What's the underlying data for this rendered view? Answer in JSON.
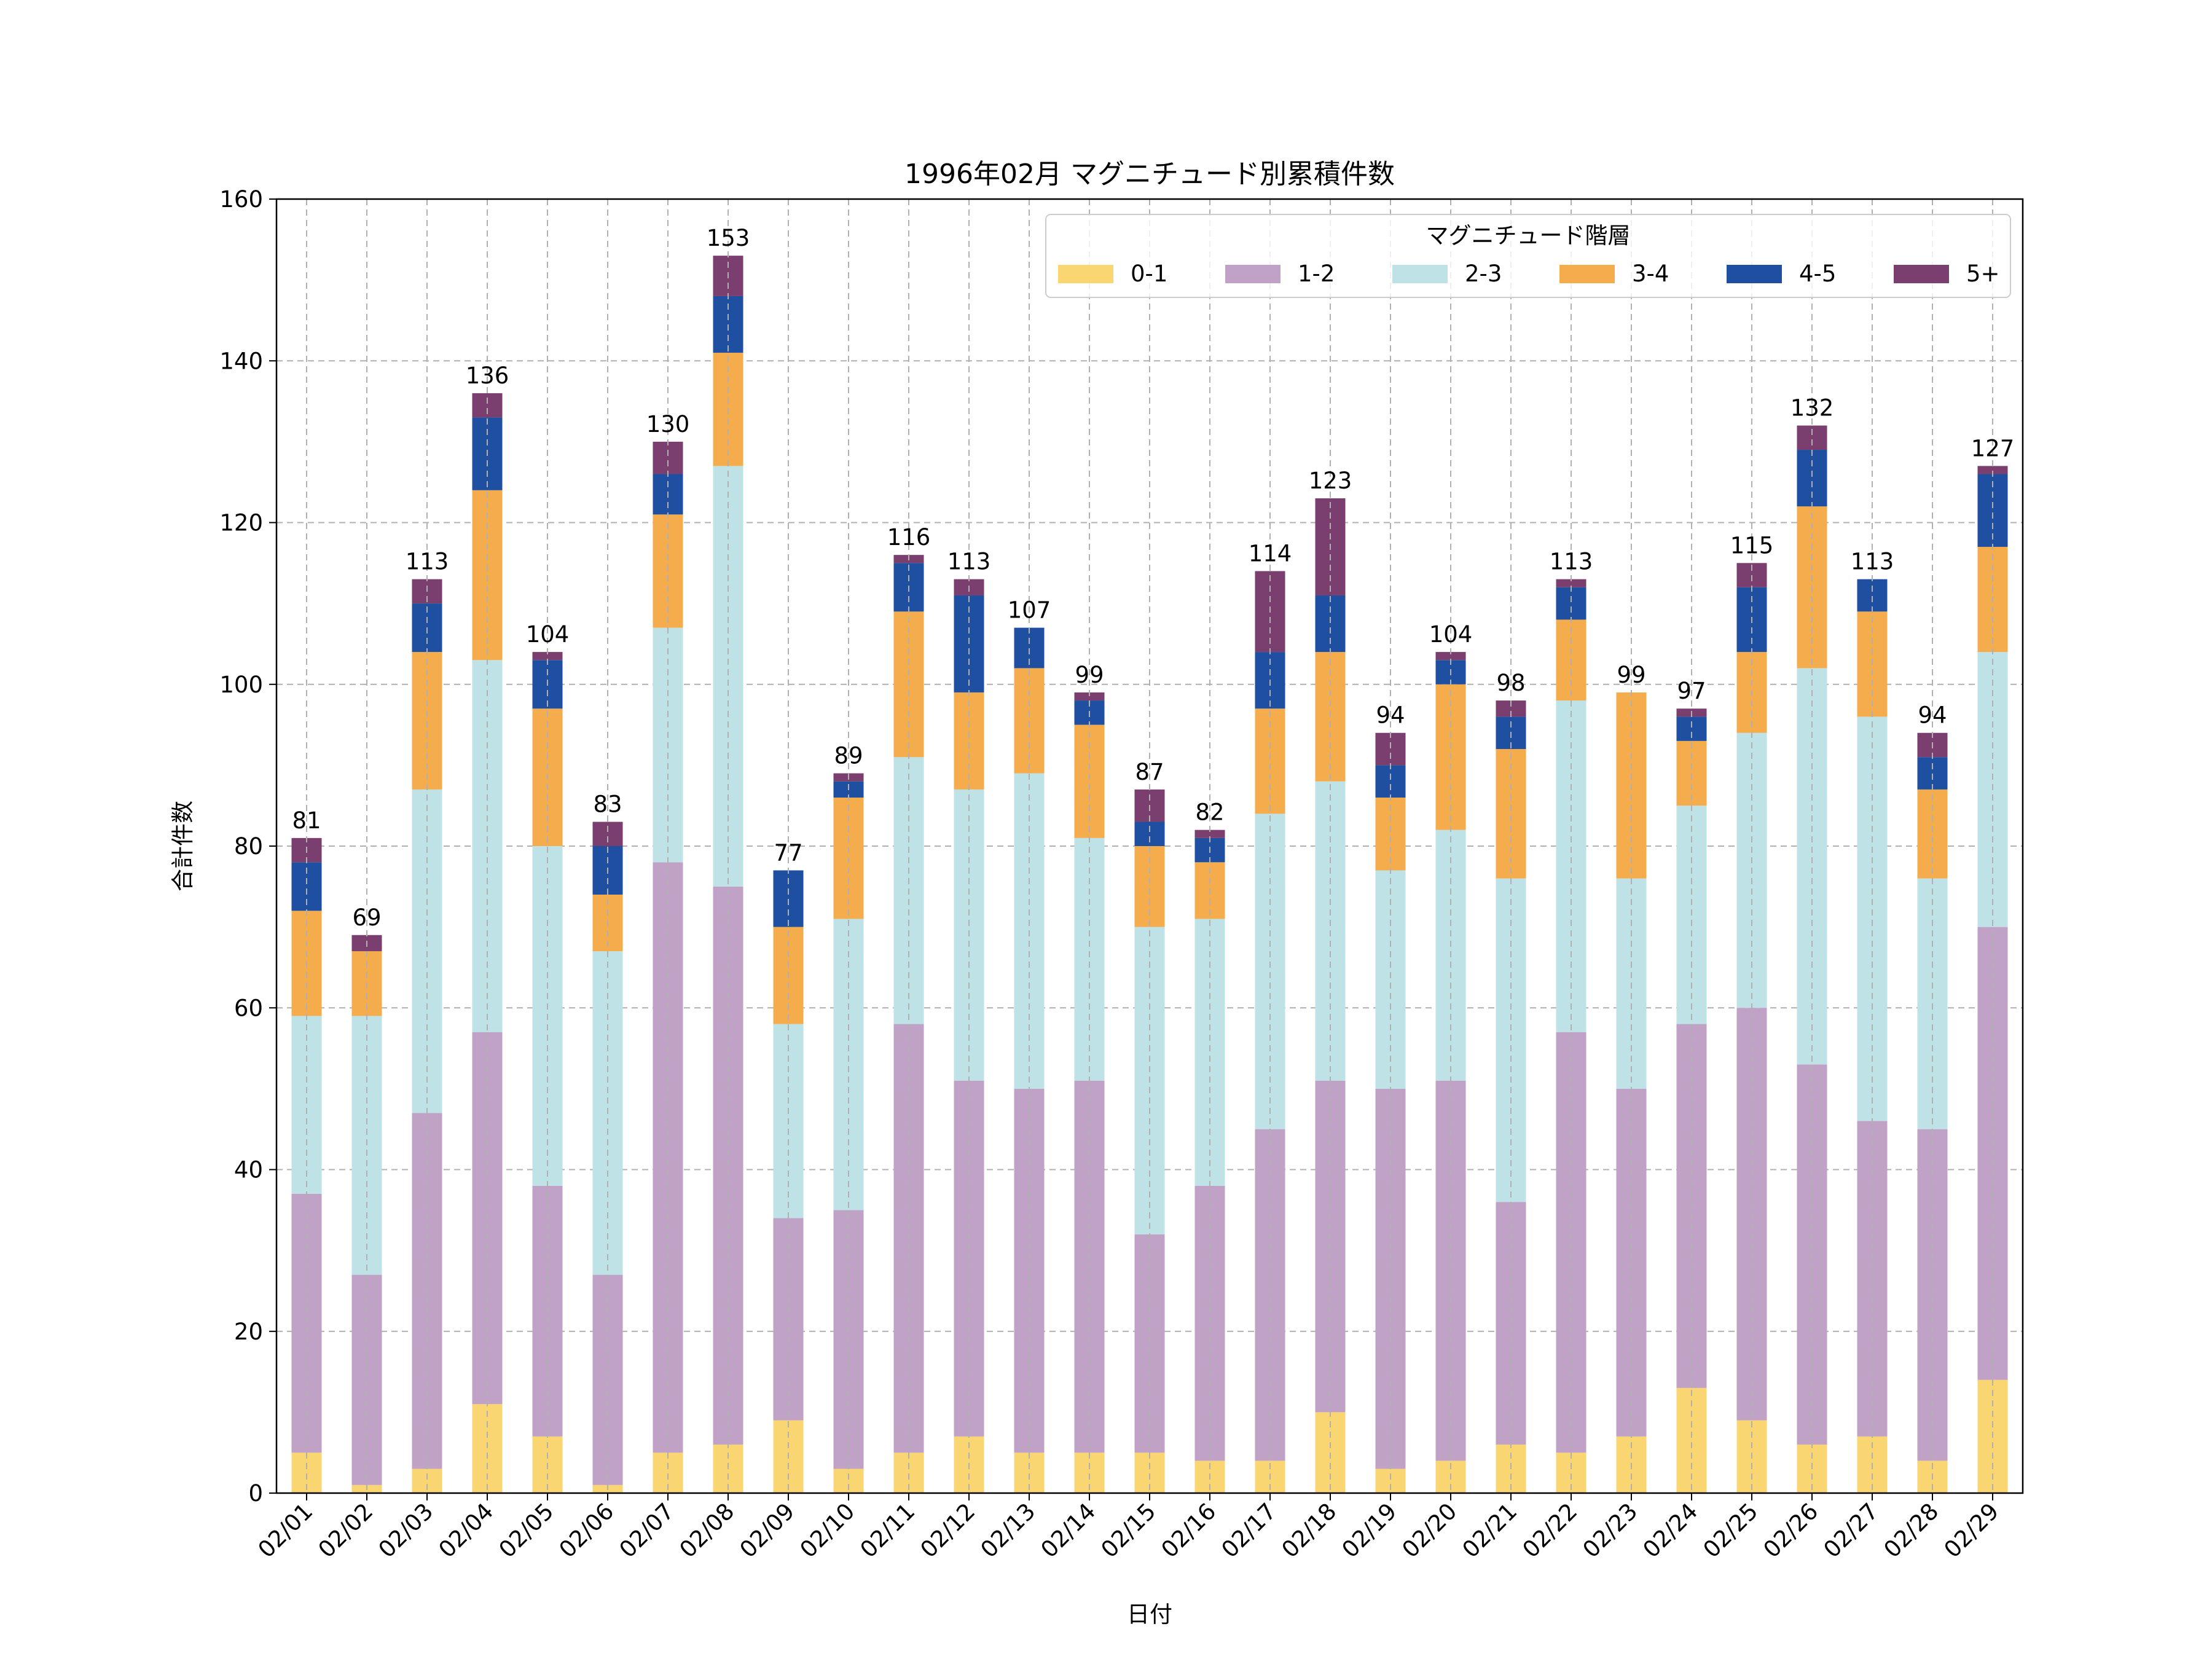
{
  "chart_data": {
    "type": "bar",
    "stacked": true,
    "title": "1996年02月 マグニチュード別累積件数",
    "xlabel": "日付",
    "ylabel": "合計件数",
    "ylim": [
      0,
      160
    ],
    "yticks": [
      0,
      20,
      40,
      60,
      80,
      100,
      120,
      140,
      160
    ],
    "grid": true,
    "legend": {
      "title": "マグニチュード階層",
      "position": "top-right"
    },
    "categories": [
      "02/01",
      "02/02",
      "02/03",
      "02/04",
      "02/05",
      "02/06",
      "02/07",
      "02/08",
      "02/09",
      "02/10",
      "02/11",
      "02/12",
      "02/13",
      "02/14",
      "02/15",
      "02/16",
      "02/17",
      "02/18",
      "02/19",
      "02/20",
      "02/21",
      "02/22",
      "02/23",
      "02/24",
      "02/25",
      "02/26",
      "02/27",
      "02/28",
      "02/29"
    ],
    "totals": [
      81,
      69,
      113,
      136,
      104,
      83,
      130,
      153,
      77,
      89,
      116,
      113,
      107,
      99,
      87,
      82,
      114,
      123,
      94,
      104,
      98,
      113,
      99,
      97,
      115,
      132,
      113,
      94,
      127
    ],
    "series": [
      {
        "name": "0-1",
        "color": "#fad673",
        "values": [
          5,
          1,
          3,
          11,
          7,
          1,
          5,
          6,
          9,
          3,
          5,
          7,
          5,
          5,
          5,
          4,
          4,
          10,
          3,
          4,
          6,
          5,
          7,
          13,
          9,
          6,
          7,
          4,
          14
        ]
      },
      {
        "name": "1-2",
        "color": "#bfa2c6",
        "values": [
          32,
          26,
          44,
          46,
          31,
          26,
          73,
          69,
          25,
          32,
          53,
          44,
          45,
          46,
          27,
          34,
          41,
          41,
          47,
          47,
          30,
          52,
          43,
          45,
          51,
          47,
          39,
          41,
          56
        ]
      },
      {
        "name": "2-3",
        "color": "#bfe2e6",
        "values": [
          22,
          32,
          40,
          46,
          42,
          40,
          29,
          52,
          24,
          36,
          33,
          36,
          39,
          30,
          38,
          33,
          39,
          37,
          27,
          31,
          40,
          41,
          26,
          27,
          34,
          49,
          50,
          31,
          34
        ]
      },
      {
        "name": "3-4",
        "color": "#f4ac4c",
        "values": [
          13,
          8,
          17,
          21,
          17,
          7,
          14,
          14,
          12,
          15,
          18,
          12,
          13,
          14,
          10,
          7,
          13,
          16,
          9,
          18,
          16,
          10,
          23,
          8,
          10,
          20,
          13,
          11,
          13
        ]
      },
      {
        "name": "4-5",
        "color": "#1f4fa0",
        "values": [
          6,
          0,
          6,
          9,
          6,
          6,
          5,
          7,
          7,
          2,
          6,
          12,
          5,
          3,
          3,
          3,
          7,
          7,
          4,
          3,
          4,
          4,
          0,
          3,
          8,
          7,
          4,
          4,
          9
        ]
      },
      {
        "name": "5+",
        "color": "#7a3e6f",
        "values": [
          3,
          2,
          3,
          3,
          1,
          3,
          4,
          5,
          0,
          1,
          1,
          2,
          0,
          1,
          4,
          1,
          10,
          12,
          4,
          1,
          2,
          1,
          0,
          1,
          3,
          3,
          0,
          3,
          1
        ]
      }
    ]
  }
}
